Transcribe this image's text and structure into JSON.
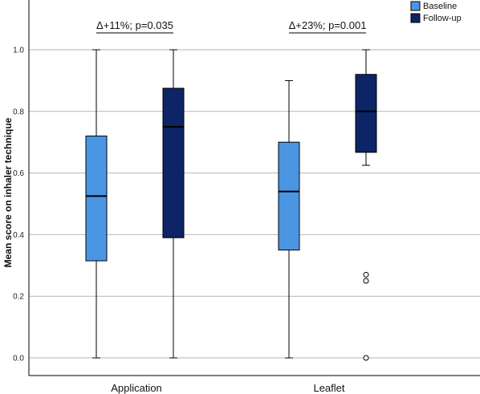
{
  "chart_data": {
    "type": "box",
    "ylabel": "Mean score on inhaler technique",
    "xlabel": "",
    "ylim": [
      -0.06,
      1.18
    ],
    "yticks": [
      "0.0",
      "0.2",
      "0.4",
      "0.6",
      "0.8",
      "1.0"
    ],
    "ytick_values": [
      0,
      0.2,
      0.4,
      0.6,
      0.8,
      1.0
    ],
    "grid": true,
    "legend": "top-right",
    "categories": [
      "Application",
      "Leaflet"
    ],
    "series": [
      {
        "name": "Baseline",
        "color": "#4b96e3",
        "boxes": [
          {
            "min": 0.0,
            "q1": 0.315,
            "median": 0.525,
            "q3": 0.72,
            "max": 1.0,
            "outliers": []
          },
          {
            "min": 0.0,
            "q1": 0.35,
            "median": 0.54,
            "q3": 0.7,
            "max": 0.9,
            "outliers": []
          }
        ]
      },
      {
        "name": "Follow-up",
        "color": "#0d2467",
        "boxes": [
          {
            "min": 0.0,
            "q1": 0.39,
            "median": 0.75,
            "q3": 0.875,
            "max": 1.0,
            "outliers": []
          },
          {
            "min": 0.625,
            "q1": 0.667,
            "median": 0.8,
            "q3": 0.92,
            "max": 1.0,
            "outliers": [
              0.0,
              0.25,
              0.27
            ]
          }
        ]
      }
    ],
    "annotations": [
      {
        "category": "Application",
        "text": "Δ+11%; p=0.035"
      },
      {
        "category": "Leaflet",
        "text": "Δ+23%; p=0.001"
      }
    ]
  }
}
